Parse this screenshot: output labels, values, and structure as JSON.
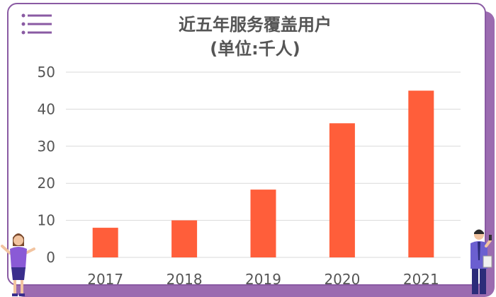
{
  "header": {
    "menu_icon": "hamburger-menu-icon",
    "title_line1": "近五年服务覆盖用户",
    "title_line2": "(单位:千人)"
  },
  "colors": {
    "bar": "#ff5e3a",
    "card_border": "#8a5aa3",
    "card_shadow": "#9b6bb0",
    "grid": "#d9d9d9",
    "axis_text": "#555555",
    "title": "#555555"
  },
  "chart_data": {
    "type": "bar",
    "title": "近五年服务覆盖用户 (单位:千人)",
    "xlabel": "",
    "ylabel": "",
    "categories": [
      "2017",
      "2018",
      "2019",
      "2020",
      "2021"
    ],
    "values": [
      8,
      10,
      18.3,
      36.2,
      45
    ],
    "ylim": [
      0,
      50
    ],
    "yticks": [
      "0",
      "10",
      "20",
      "30",
      "40",
      "50"
    ],
    "grid": true,
    "legend": "none"
  },
  "decorations": {
    "left_figure": "woman-waving-icon",
    "right_figure": "man-with-phone-icon"
  }
}
